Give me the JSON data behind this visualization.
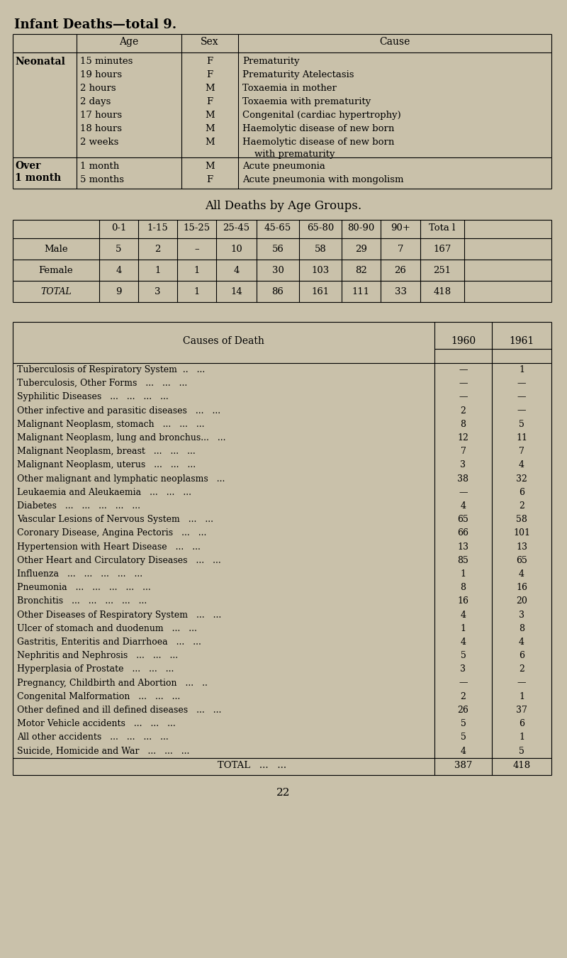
{
  "bg_color": "#c9c1aa",
  "title1": "Infant Deaths—total 9.",
  "infant_ages": [
    "15 minutes",
    "19 hours",
    "2 hours",
    "2 days",
    "17 hours",
    "18 hours",
    "2 weeks"
  ],
  "infant_sexes": [
    "F",
    "F",
    "M",
    "F",
    "M",
    "M",
    "M"
  ],
  "infant_causes": [
    "Prematurity",
    "Prematurity Atelectasis",
    "Toxaemia in mother",
    "Toxaemia with prematurity",
    "Congenital (cardiac hypertrophy)",
    "Haemolytic disease of new born",
    "Haemolytic disease of new born"
  ],
  "infant_cause_cont": [
    "",
    "",
    "",
    "",
    "",
    "",
    "    with prematurity"
  ],
  "over1m_ages": [
    "1 month",
    "5 months"
  ],
  "over1m_sexes": [
    "M",
    "F"
  ],
  "over1m_causes": [
    "Acute pneumonia",
    "Acute pneumonia with mongolism"
  ],
  "title2": "All Deaths by Age Groups.",
  "age_headers": [
    "",
    "0-1",
    "1-15",
    "15-25",
    "25-45",
    "45-65",
    "65-80",
    "80-90",
    "90+",
    "Tota l"
  ],
  "age_rows": [
    [
      "Male",
      "5",
      "2",
      "–",
      "10",
      "56",
      "58",
      "29",
      "7",
      "167"
    ],
    [
      "Female",
      "4",
      "1",
      "1",
      "4",
      "30",
      "103",
      "82",
      "26",
      "251"
    ],
    [
      "TOTAL",
      "9",
      "3",
      "1",
      "14",
      "86",
      "161",
      "111",
      "33",
      "418"
    ]
  ],
  "causes_rows": [
    [
      "Tuberculosis of Respiratory System  ..   ...",
      "—",
      "1"
    ],
    [
      "Tuberculosis, Other Forms   ...   ...   ...",
      "—",
      "—"
    ],
    [
      "Syphilitic Diseases   ...   ...   ...   ...",
      "—",
      "—"
    ],
    [
      "Other infective and parasitic diseases   ...   ...",
      "2",
      "—"
    ],
    [
      "Malignant Neoplasm, stomach   ...   ...   ...",
      "8",
      "5"
    ],
    [
      "Malignant Neoplasm, lung and bronchus...   ...",
      "12",
      "11"
    ],
    [
      "Malignant Neoplasm, breast   ...   ...   ...",
      "7",
      "7"
    ],
    [
      "Malignant Neoplasm, uterus   ...   ...   ...",
      "3",
      "4"
    ],
    [
      "Other malignant and lymphatic neoplasms   ...",
      "38",
      "32"
    ],
    [
      "Leukaemia and Aleukaemia   ...   ...   ...",
      "—",
      "6"
    ],
    [
      "Diabetes   ...   ...   ...   ...   ...",
      "4",
      "2"
    ],
    [
      "Vascular Lesions of Nervous System   ...   ...",
      "65",
      "58"
    ],
    [
      "Coronary Disease, Angina Pectoris   ...   ...",
      "66",
      "101"
    ],
    [
      "Hypertension with Heart Disease   ...   ...",
      "13",
      "13"
    ],
    [
      "Other Heart and Circulatory Diseases   ...   ...",
      "85",
      "65"
    ],
    [
      "Influenza   ...   ...   ...   ...   ...",
      "1",
      "4"
    ],
    [
      "Pneumonia   ...   ...   ...   ...   ...",
      "8",
      "16"
    ],
    [
      "Bronchitis   ...   ...   ...   ...   ...",
      "16",
      "20"
    ],
    [
      "Other Diseases of Respiratory System   ...   ...",
      "4",
      "3"
    ],
    [
      "Ulcer of stomach and duodenum   ...   ...",
      "1",
      "8"
    ],
    [
      "Gastritis, Enteritis and Diarrhoea   ...   ...",
      "4",
      "4"
    ],
    [
      "Nephritis and Nephrosis   ...   ...   ...",
      "5",
      "6"
    ],
    [
      "Hyperplasia of Prostate   ...   ...   ...",
      "3",
      "2"
    ],
    [
      "Pregnancy, Childbirth and Abortion   ...   ..",
      "—",
      "—"
    ],
    [
      "Congenital Malformation   ...   ...   ...",
      "2",
      "1"
    ],
    [
      "Other defined and ill defined diseases   ...   ...",
      "26",
      "37"
    ],
    [
      "Motor Vehicle accidents   ...   ...   ...",
      "5",
      "6"
    ],
    [
      "All other accidents   ...   ...   ...   ...",
      "5",
      "1"
    ],
    [
      "Suicide, Homicide and War   ...   ...   ...",
      "4",
      "5"
    ]
  ],
  "causes_total": [
    "TOTAL   ...   ...",
    "387",
    "418"
  ],
  "page_number": "22"
}
